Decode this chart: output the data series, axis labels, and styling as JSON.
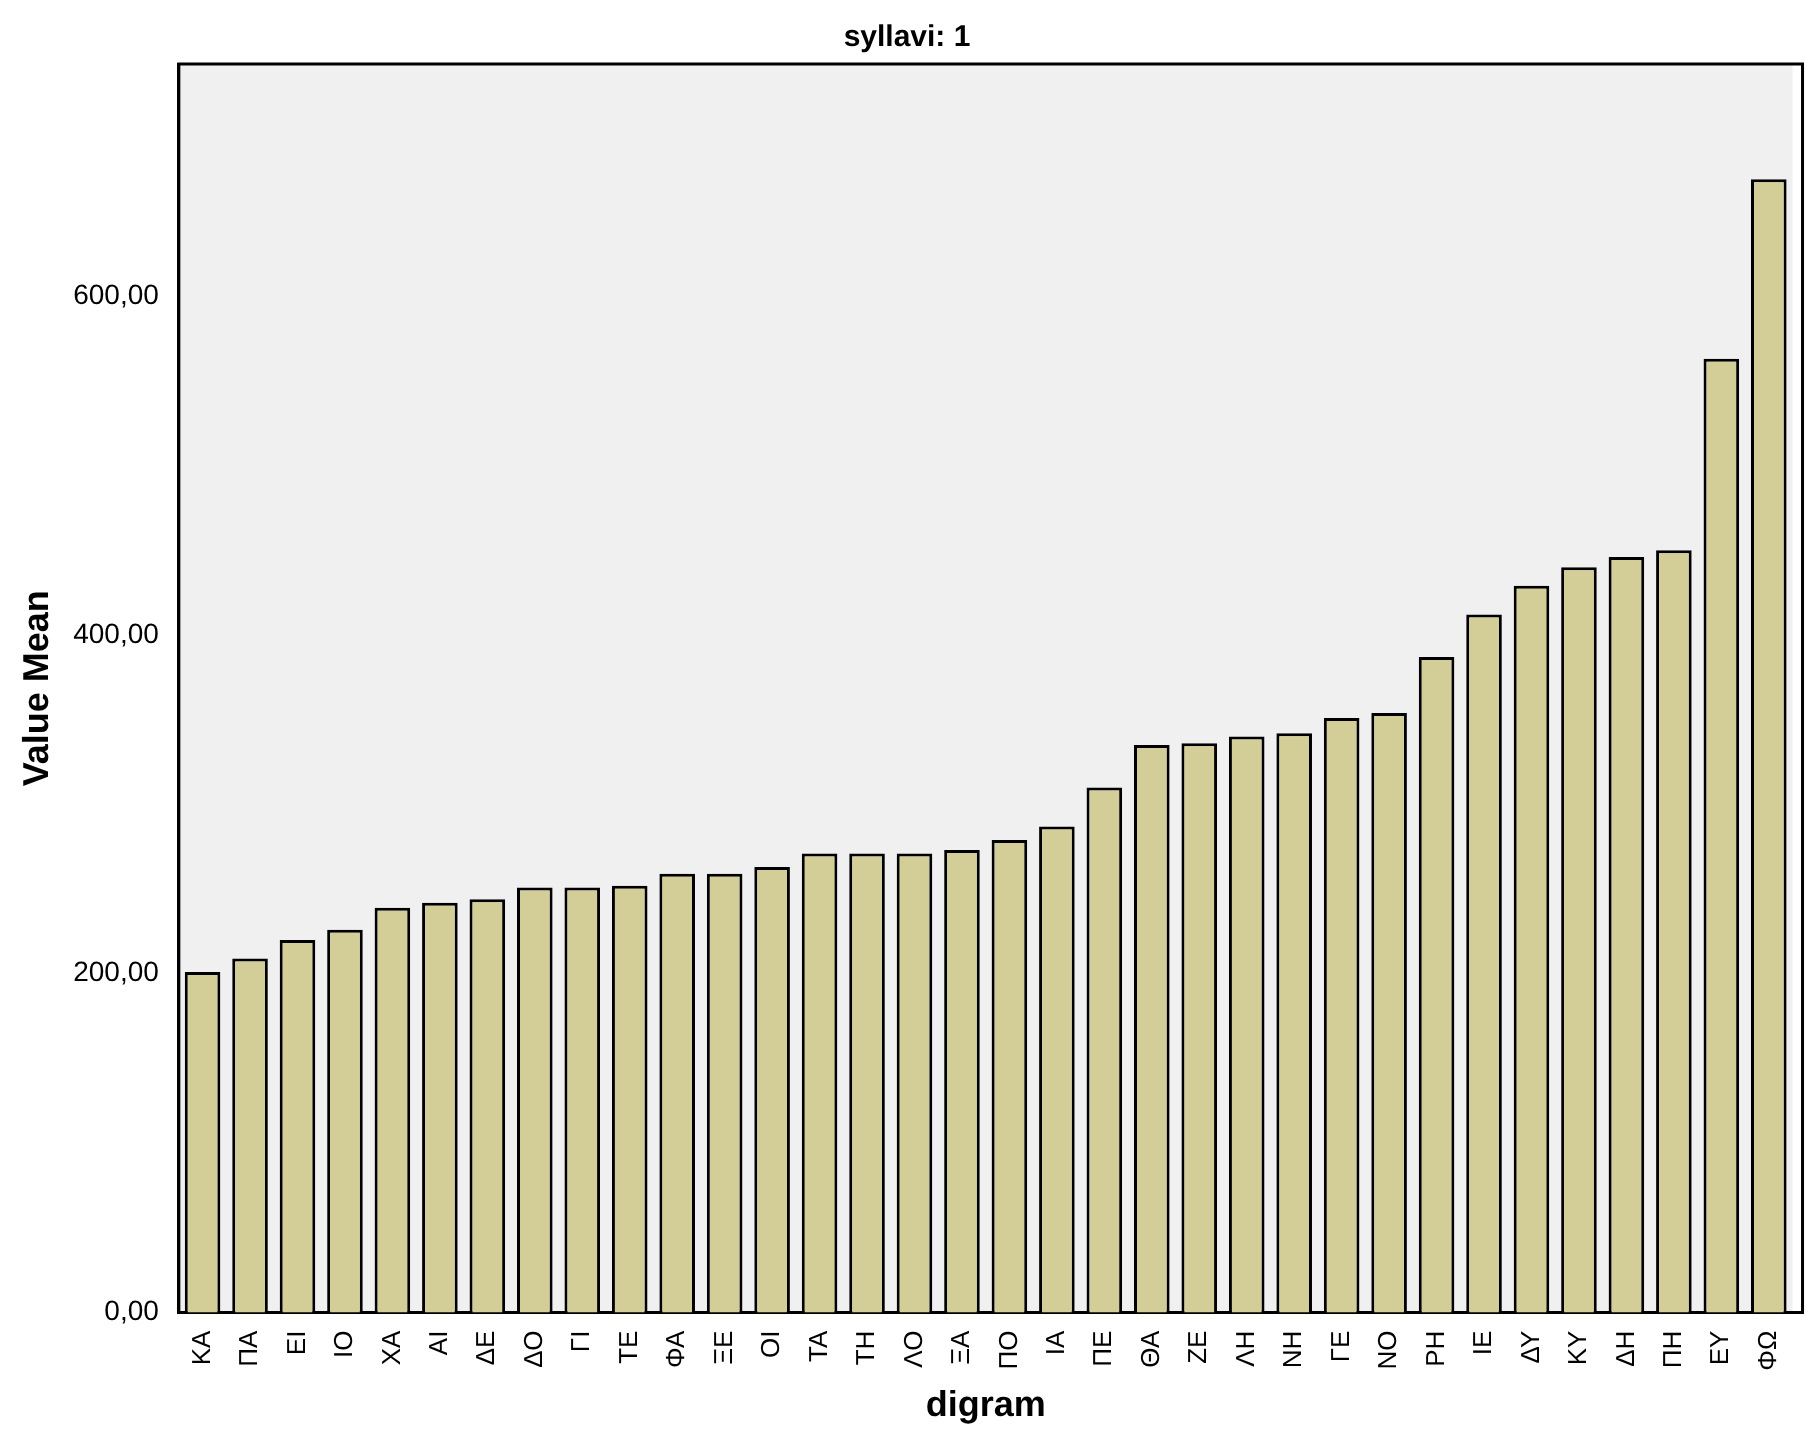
{
  "chart_data": {
    "type": "bar",
    "title": "syllavi: 1",
    "xlabel": "digram",
    "ylabel": "Value Mean",
    "categories": [
      "ΚΑ",
      "ΠΑ",
      "ΕΙ",
      "ΙΟ",
      "ΧΑ",
      "ΑΙ",
      "ΔΕ",
      "ΔΟ",
      "ΓΙ",
      "ΤΕ",
      "ΦΑ",
      "ΞΕ",
      "ΟΙ",
      "ΤΑ",
      "ΤΗ",
      "ΛΟ",
      "ΞΑ",
      "ΠΟ",
      "ΙΑ",
      "ΠΕ",
      "ΘΑ",
      "ΖΕ",
      "ΛΗ",
      "ΝΗ",
      "ΓΕ",
      "ΝΟ",
      "ΡΗ",
      "ΙΕ",
      "ΔΥ",
      "ΚΥ",
      "ΔΗ",
      "ΠΗ",
      "ΕΥ",
      "ΦΩ"
    ],
    "values": [
      201,
      209,
      220,
      226,
      239,
      242,
      244,
      251,
      251,
      252,
      259,
      259,
      263,
      271,
      271,
      271,
      273,
      279,
      287,
      310,
      335,
      336,
      340,
      342,
      351,
      354,
      387,
      412,
      429,
      440,
      446,
      450,
      563,
      669
    ],
    "color": "#d3ce97",
    "ylim": [
      0,
      737
    ],
    "yticks": [
      {
        "value": 0,
        "label": "0,00"
      },
      {
        "value": 200,
        "label": "200,00"
      },
      {
        "value": 400,
        "label": "400,00"
      },
      {
        "value": 600,
        "label": "600,00"
      }
    ],
    "grid": false,
    "legend": false
  }
}
